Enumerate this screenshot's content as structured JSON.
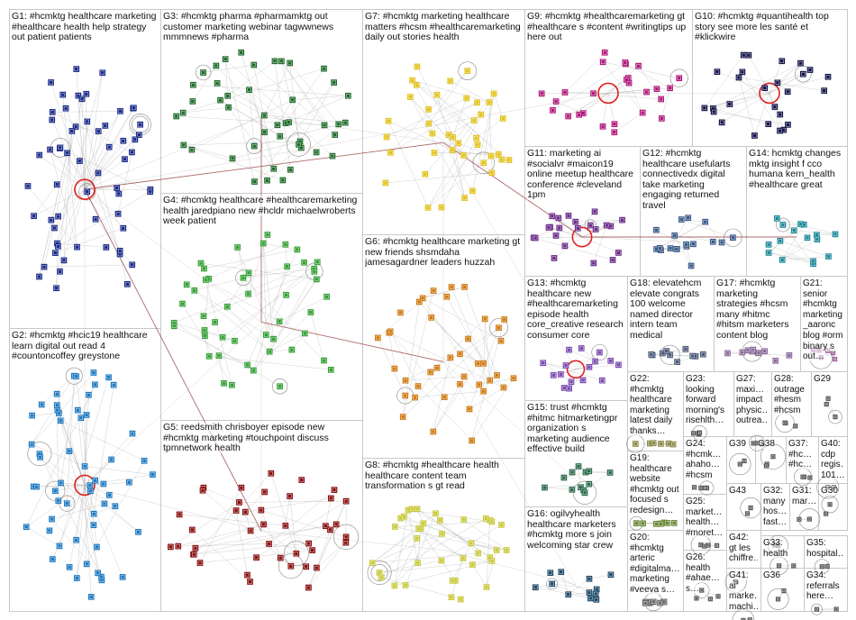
{
  "colors": {
    "background": "#ffffff",
    "box_border": "#c8c8c8",
    "edge": "#9a9a9a",
    "highlight_edge": "#8a2b2b",
    "hub_ring": "#e0201f",
    "G1": "#1a2a8a",
    "G2": "#1f7ac2",
    "G3": "#1f6b2a",
    "G4": "#33a033",
    "G5": "#8a0f0f",
    "G6": "#d07a10",
    "G7": "#e3c21a",
    "G8": "#c9c93a",
    "G9": "#b0187a",
    "G10": "#15154a",
    "G11": "#6a2a8a",
    "G12": "#3a5a8a",
    "G13": "#7a4ab0",
    "G14": "#1f8a9a",
    "G15": "#2a6a4a",
    "G16": "#1f4a6a",
    "G17": "#8a6a9a",
    "G18": "#4a5a7a",
    "G19": "#6a8a3a",
    "G20": "#6a6a6a",
    "G21": "#9a5a9a",
    "G22": "#8a8a4a"
  },
  "groups": [
    {
      "id": "G1",
      "label": "G1: #hcmktg healthcare marketing #healthcare health help strategy out patient patients",
      "nodes": 60,
      "hub": true
    },
    {
      "id": "G2",
      "label": "G2: #hcmktg #hcic19 healthcare learn digital out read 4 #countoncoffey greystone",
      "nodes": 58,
      "hub": true
    },
    {
      "id": "G3",
      "label": "G3: #hcmktg pharma #pharmamktg out customer marketing webinar tagwwnews mmmnews #pharma",
      "nodes": 45,
      "hub": false
    },
    {
      "id": "G4",
      "label": "G4: #hcmktg healthcare #healthcaremarketing health jaredpiano new #hcldr michaelwroberts week patient",
      "nodes": 48,
      "hub": false
    },
    {
      "id": "G5",
      "label": "G5: reedsmith chrisboyer episode new #hcmktg marketing #touchpoint discuss tpmnetwork health",
      "nodes": 42,
      "hub": false
    },
    {
      "id": "G6",
      "label": "G6: #hcmktg healthcare marketing gt new friends shsmdaha jamesagardner leaders huzzah",
      "nodes": 40,
      "hub": false
    },
    {
      "id": "G7",
      "label": "G7: #hcmktg marketing healthcare matters #hcsm #healthcaremarketing daily out stories health",
      "nodes": 40,
      "hub": false
    },
    {
      "id": "G8",
      "label": "G8: #hcmktg #healthcare health healthcare content team transformation s gt read",
      "nodes": 38,
      "hub": false
    },
    {
      "id": "G9",
      "label": "G9: #hcmktg #healthcaremarketing gt #healthcare s #content #writingtips up here out",
      "nodes": 26,
      "hub": true
    },
    {
      "id": "G10",
      "label": "G10: #hcmktg #quantihealth top story see more les santé et #klickwire",
      "nodes": 26,
      "hub": true
    },
    {
      "id": "G11",
      "label": "G11: marketing ai #socialvr #maicon19 online meetup healthcare conference #cleveland 1pm",
      "nodes": 22,
      "hub": true
    },
    {
      "id": "G12",
      "label": "G12: #hcmktg healthcare usefularts connectivedx digital take marketing engaging returned travel",
      "nodes": 18,
      "hub": false
    },
    {
      "id": "G13",
      "label": "G13: #hcmktg healthcare new #healthcaremarketing episode health core_creative research consumer core",
      "nodes": 16,
      "hub": true
    },
    {
      "id": "G14",
      "label": "G14: hcmktg changes mktg insight f cco humana kern_health #healthcare great",
      "nodes": 16,
      "hub": false
    },
    {
      "id": "G15",
      "label": "G15: trust #hcmktg #hitmc hitmarketingpr organization s marketing audience effective build",
      "nodes": 12,
      "hub": false
    },
    {
      "id": "G16",
      "label": "G16: ogilvyhealth healthcare marketers #hcmktg more s join welcoming star crew",
      "nodes": 12,
      "hub": false
    },
    {
      "id": "G17",
      "label": "G17: #hcmktg marketing strategies #hcsm many #hitmc #hitsm marketers content blog",
      "nodes": 10,
      "hub": false
    },
    {
      "id": "G18",
      "label": "G18: elevatehcm elevate congrats 100 welcome named director intern team medical",
      "nodes": 10,
      "hub": false
    },
    {
      "id": "G19",
      "label": "G19: healthcare website #hcmktg out focused s redesign…",
      "nodes": 8,
      "hub": false
    },
    {
      "id": "G20",
      "label": "G20: #hcmktg arteric #digitalma… marketing #veeva s…",
      "nodes": 8,
      "hub": false
    },
    {
      "id": "G21",
      "label": "G21: senior #hcmktg marketing _aaronc blog #orm binary s out…",
      "nodes": 6,
      "hub": false
    },
    {
      "id": "G22",
      "label": "G22: #hcmktg healthcare marketing latest daily thanks…",
      "nodes": 6,
      "hub": false
    },
    {
      "id": "G23",
      "label": "G23: looking forward morning's risehlth…",
      "nodes": 5,
      "hub": false
    },
    {
      "id": "G24",
      "label": "G24: #hcmk… ahaho… #hcsm",
      "nodes": 4,
      "hub": false
    },
    {
      "id": "G25",
      "label": "G25: market… health… #moret…",
      "nodes": 4,
      "hub": false
    },
    {
      "id": "G26",
      "label": "G26: health #ahae… s…",
      "nodes": 4,
      "hub": false
    },
    {
      "id": "G27",
      "label": "G27: maxi… impact physic… outrea…",
      "nodes": 4,
      "hub": false
    },
    {
      "id": "G28",
      "label": "G28: outrage #hesm #hcsm",
      "nodes": 3,
      "hub": false
    },
    {
      "id": "G29",
      "label": "G29",
      "nodes": 3,
      "hub": false
    },
    {
      "id": "G30",
      "label": "G30",
      "nodes": 2,
      "hub": false
    },
    {
      "id": "G31",
      "label": "G31: mar…",
      "nodes": 2,
      "hub": false
    },
    {
      "id": "G32",
      "label": "G32: many hos… fast… mar…",
      "nodes": 3,
      "hub": false
    },
    {
      "id": "G33",
      "label": "G33: health",
      "nodes": 2,
      "hub": false
    },
    {
      "id": "G34",
      "label": "G34: referrals here…",
      "nodes": 2,
      "hub": false
    },
    {
      "id": "G35",
      "label": "G35: hospital…",
      "nodes": 2,
      "hub": false
    },
    {
      "id": "G36",
      "label": "G36",
      "nodes": 2,
      "hub": false
    },
    {
      "id": "G37",
      "label": "G37: #hc… #hc…",
      "nodes": 3,
      "hub": false
    },
    {
      "id": "G38",
      "label": "G38",
      "nodes": 3,
      "hub": false
    },
    {
      "id": "G39",
      "label": "G39",
      "nodes": 2,
      "hub": false
    },
    {
      "id": "G40",
      "label": "G40: cdp regis… 101…",
      "nodes": 2,
      "hub": false
    },
    {
      "id": "G41",
      "label": "G41: ai marke… machi…",
      "nodes": 2,
      "hub": false
    },
    {
      "id": "G42",
      "label": "G42: gt les chiffre…",
      "nodes": 2,
      "hub": false
    },
    {
      "id": "G43",
      "label": "G43",
      "nodes": 2,
      "hub": false
    }
  ]
}
